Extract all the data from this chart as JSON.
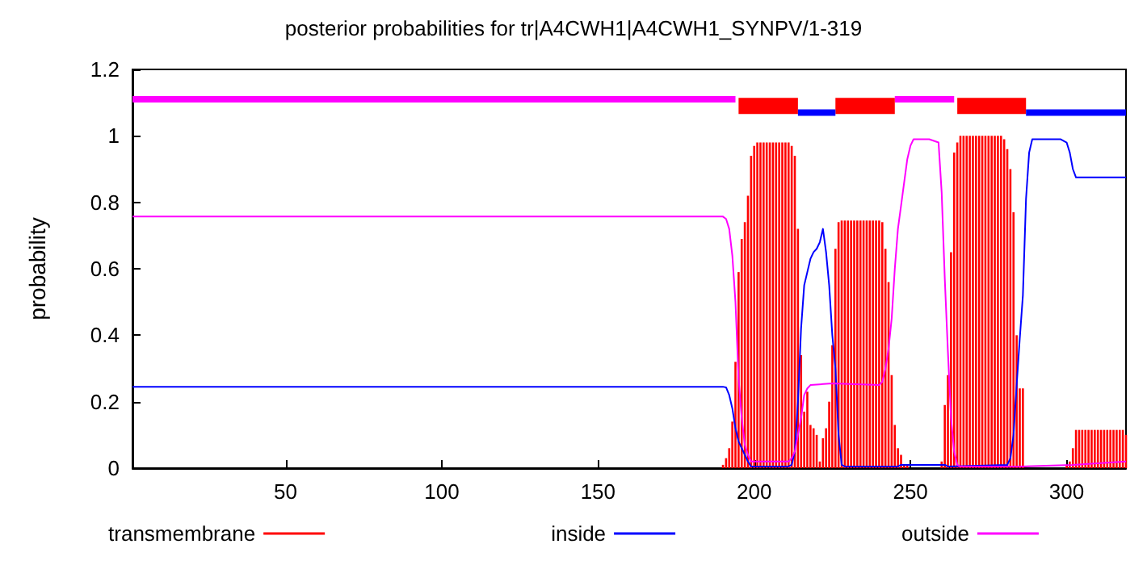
{
  "chart_data": {
    "type": "line",
    "title": "posterior probabilities for tr|A4CWH1|A4CWH1_SYNPV/1-319",
    "ylabel": "probability",
    "xlim": [
      1,
      319
    ],
    "xticks": [
      50,
      100,
      150,
      200,
      250,
      300
    ],
    "ylim": [
      0,
      1.2
    ],
    "yticks": [
      0,
      0.2,
      0.4,
      0.6,
      0.8,
      1,
      1.2
    ],
    "grid": false,
    "legend": "bottom",
    "marker": "none",
    "line_style": "solid",
    "series": [
      {
        "name": "transmembrane",
        "type": "bar",
        "color": "#ff0000",
        "x": [
          190,
          191,
          192,
          193,
          194,
          195,
          196,
          197,
          198,
          199,
          200,
          201,
          202,
          203,
          204,
          205,
          206,
          207,
          208,
          209,
          210,
          211,
          212,
          213,
          214,
          215,
          216,
          217,
          218,
          219,
          220,
          221,
          222,
          223,
          224,
          225,
          226,
          227,
          228,
          229,
          230,
          231,
          232,
          233,
          234,
          235,
          236,
          237,
          238,
          239,
          240,
          241,
          242,
          243,
          244,
          245,
          246,
          247,
          248,
          249,
          260,
          261,
          262,
          263,
          264,
          265,
          266,
          267,
          268,
          269,
          270,
          271,
          272,
          273,
          274,
          275,
          276,
          277,
          278,
          279,
          280,
          281,
          282,
          283,
          284,
          285,
          286,
          287,
          300,
          301,
          302,
          303,
          304,
          305,
          306,
          307,
          308,
          309,
          310,
          311,
          312,
          313,
          314,
          315,
          316,
          317,
          318,
          319
        ],
        "values": [
          0.01,
          0.03,
          0.06,
          0.14,
          0.32,
          0.59,
          0.69,
          0.74,
          0.82,
          0.94,
          0.97,
          0.98,
          0.98,
          0.98,
          0.98,
          0.98,
          0.98,
          0.98,
          0.98,
          0.98,
          0.98,
          0.98,
          0.97,
          0.94,
          0.72,
          0.34,
          0.17,
          0.23,
          0.13,
          0.12,
          0.1,
          0.02,
          0.09,
          0.12,
          0.2,
          0.37,
          0.66,
          0.74,
          0.745,
          0.745,
          0.745,
          0.745,
          0.745,
          0.745,
          0.745,
          0.745,
          0.745,
          0.745,
          0.745,
          0.745,
          0.745,
          0.74,
          0.66,
          0.56,
          0.28,
          0.13,
          0.06,
          0.04,
          0.01,
          0.01,
          0.02,
          0.19,
          0.28,
          0.65,
          0.95,
          0.98,
          1,
          1,
          1,
          1,
          1,
          1,
          1,
          1,
          1,
          1,
          1,
          1,
          1,
          1,
          0.99,
          0.96,
          0.9,
          0.77,
          0.4,
          0.24,
          0.24,
          null,
          0.01,
          0.02,
          0.06,
          0.115,
          0.115,
          0.115,
          0.115,
          0.115,
          0.115,
          0.115,
          0.115,
          0.115,
          0.115,
          0.115,
          0.115,
          0.115,
          0.115,
          0.115,
          0.115,
          0.1
        ]
      },
      {
        "name": "inside",
        "color": "#0000ff",
        "x": [
          1,
          190,
          191,
          192,
          193,
          194,
          195,
          196,
          197,
          198,
          199,
          211,
          212,
          213,
          214,
          215,
          216,
          217,
          218,
          219,
          220,
          221,
          222,
          223,
          224,
          225,
          226,
          227,
          228,
          229,
          246,
          247,
          261,
          262,
          281,
          282,
          283,
          284,
          285,
          286,
          287,
          288,
          289,
          298,
          300,
          301,
          302,
          303,
          319
        ],
        "values": [
          0.245,
          0.245,
          0.243,
          0.22,
          0.18,
          0.12,
          0.08,
          0.06,
          0.04,
          0.02,
          0.005,
          0.005,
          0.01,
          0.05,
          0.2,
          0.42,
          0.55,
          0.59,
          0.63,
          0.65,
          0.66,
          0.68,
          0.72,
          0.65,
          0.55,
          0.4,
          0.3,
          0.1,
          0.01,
          0.005,
          0.005,
          0.01,
          0.01,
          0.005,
          0.01,
          0.03,
          0.1,
          0.25,
          0.39,
          0.52,
          0.81,
          0.95,
          0.99,
          0.99,
          0.98,
          0.95,
          0.9,
          0.875,
          0.875
        ]
      },
      {
        "name": "outside",
        "color": "#ff00ff",
        "x": [
          1,
          190,
          191,
          192,
          193,
          194,
          195,
          196,
          197,
          198,
          199,
          211,
          212,
          213,
          214,
          215,
          216,
          217,
          218,
          225,
          240,
          241,
          242,
          243,
          244,
          245,
          246,
          247,
          248,
          249,
          250,
          251,
          256,
          259,
          260,
          261,
          262,
          263,
          264,
          265,
          266,
          285,
          302,
          319
        ],
        "values": [
          0.757,
          0.757,
          0.75,
          0.72,
          0.64,
          0.5,
          0.27,
          0.15,
          0.07,
          0.04,
          0.02,
          0.02,
          0.03,
          0.05,
          0.1,
          0.15,
          0.22,
          0.24,
          0.25,
          0.255,
          0.25,
          0.26,
          0.3,
          0.36,
          0.45,
          0.6,
          0.72,
          0.79,
          0.86,
          0.93,
          0.97,
          0.99,
          0.99,
          0.98,
          0.83,
          0.57,
          0.35,
          0.15,
          0.05,
          0.01,
          0.005,
          0.005,
          0.01,
          0.02
        ]
      },
      {
        "color": "#ff00ff",
        "x": [
          1,
          194,
          220,
          245,
          264
        ],
        "values": [
          1.11,
          1.11,
          null,
          1.11,
          1.11
        ]
      },
      {
        "color": "#ff0000",
        "x": [
          195,
          214,
          220,
          226,
          245,
          255,
          265,
          287
        ],
        "values": [
          1.09,
          1.09,
          null,
          1.09,
          1.09,
          null,
          1.09,
          1.09
        ]
      },
      {
        "color": "#0000ff",
        "x": [
          214,
          226,
          250,
          287,
          319
        ],
        "values": [
          1.07,
          1.07,
          null,
          1.07,
          1.07
        ]
      }
    ]
  }
}
